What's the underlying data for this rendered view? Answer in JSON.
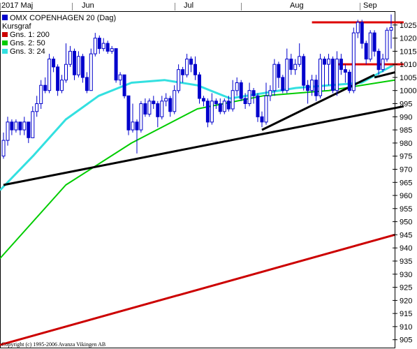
{
  "chart_data": {
    "type": "candlestick",
    "title": "OMX COPENHAGEN 20 (Dag)",
    "subtitle": "Kursgraf",
    "months": [
      "2017 Maj",
      "Jun",
      "Jul",
      "Aug",
      "Sep"
    ],
    "y_ticks": [
      905,
      910,
      915,
      920,
      925,
      930,
      935,
      940,
      945,
      950,
      955,
      960,
      965,
      970,
      975,
      980,
      985,
      990,
      995,
      1000,
      1005,
      1010,
      1015,
      1020,
      1025
    ],
    "ylim": [
      902,
      1030
    ],
    "legend": [
      {
        "label": "OMX COPENHAGEN 20 (Dag)",
        "color": "#0000cc"
      },
      {
        "label": "Kursgraf",
        "color": ""
      },
      {
        "label": "Gns. 1: 200",
        "color": "#cc0000"
      },
      {
        "label": "Gns. 2: 50",
        "color": "#00cc00"
      },
      {
        "label": "Gns. 3: 24",
        "color": "#33e0e0"
      }
    ],
    "candles": [
      {
        "o": 975,
        "c": 981,
        "h": 984,
        "l": 974
      },
      {
        "o": 981,
        "c": 988,
        "h": 990,
        "l": 979
      },
      {
        "o": 988,
        "c": 985,
        "h": 989,
        "l": 983
      },
      {
        "o": 985,
        "c": 988,
        "h": 989,
        "l": 984
      },
      {
        "o": 988,
        "c": 985,
        "h": 988,
        "l": 983
      },
      {
        "o": 985,
        "c": 988,
        "h": 990,
        "l": 983
      },
      {
        "o": 988,
        "c": 982,
        "h": 988,
        "l": 980
      },
      {
        "o": 982,
        "c": 992,
        "h": 994,
        "l": 982
      },
      {
        "o": 992,
        "c": 995,
        "h": 998,
        "l": 990
      },
      {
        "o": 995,
        "c": 1002,
        "h": 1004,
        "l": 993
      },
      {
        "o": 1002,
        "c": 1000,
        "h": 1005,
        "l": 999
      },
      {
        "o": 1000,
        "c": 1012,
        "h": 1014,
        "l": 999
      },
      {
        "o": 1012,
        "c": 1009,
        "h": 1013,
        "l": 1007
      },
      {
        "o": 1009,
        "c": 1000,
        "h": 1010,
        "l": 998
      },
      {
        "o": 1000,
        "c": 1004,
        "h": 1006,
        "l": 999
      },
      {
        "o": 1004,
        "c": 1010,
        "h": 1018,
        "l": 1003
      },
      {
        "o": 1010,
        "c": 1015,
        "h": 1017,
        "l": 1009
      },
      {
        "o": 1015,
        "c": 1006,
        "h": 1016,
        "l": 1004
      },
      {
        "o": 1006,
        "c": 1013,
        "h": 1015,
        "l": 1005
      },
      {
        "o": 1013,
        "c": 1005,
        "h": 1014,
        "l": 1003
      },
      {
        "o": 1005,
        "c": 1000,
        "h": 1007,
        "l": 999
      },
      {
        "o": 1000,
        "c": 1014,
        "h": 1016,
        "l": 1000
      },
      {
        "o": 1014,
        "c": 1020,
        "h": 1022,
        "l": 1013
      },
      {
        "o": 1020,
        "c": 1016,
        "h": 1021,
        "l": 1014
      },
      {
        "o": 1016,
        "c": 1018,
        "h": 1020,
        "l": 1015
      },
      {
        "o": 1018,
        "c": 1015,
        "h": 1019,
        "l": 1014
      },
      {
        "o": 1015,
        "c": 1016,
        "h": 1017,
        "l": 1014
      },
      {
        "o": 1016,
        "c": 1004,
        "h": 1016,
        "l": 1003
      },
      {
        "o": 1004,
        "c": 1006,
        "h": 1007,
        "l": 1002
      },
      {
        "o": 1006,
        "c": 998,
        "h": 1006,
        "l": 997
      },
      {
        "o": 998,
        "c": 985,
        "h": 998,
        "l": 983
      },
      {
        "o": 985,
        "c": 988,
        "h": 995,
        "l": 984
      },
      {
        "o": 988,
        "c": 985,
        "h": 989,
        "l": 976
      },
      {
        "o": 985,
        "c": 995,
        "h": 996,
        "l": 984
      },
      {
        "o": 995,
        "c": 991,
        "h": 997,
        "l": 990
      },
      {
        "o": 991,
        "c": 996,
        "h": 997,
        "l": 990
      },
      {
        "o": 996,
        "c": 995,
        "h": 998,
        "l": 993
      },
      {
        "o": 995,
        "c": 990,
        "h": 996,
        "l": 986
      },
      {
        "o": 990,
        "c": 996,
        "h": 998,
        "l": 989
      },
      {
        "o": 996,
        "c": 997,
        "h": 999,
        "l": 994
      },
      {
        "o": 997,
        "c": 992,
        "h": 998,
        "l": 990
      },
      {
        "o": 992,
        "c": 1000,
        "h": 1002,
        "l": 991
      },
      {
        "o": 1000,
        "c": 1008,
        "h": 1010,
        "l": 999
      },
      {
        "o": 1008,
        "c": 1006,
        "h": 1009,
        "l": 1003
      },
      {
        "o": 1006,
        "c": 1012,
        "h": 1014,
        "l": 1005
      },
      {
        "o": 1012,
        "c": 1010,
        "h": 1013,
        "l": 1007
      },
      {
        "o": 1010,
        "c": 1006,
        "h": 1013,
        "l": 1004
      },
      {
        "o": 1006,
        "c": 997,
        "h": 1007,
        "l": 995
      },
      {
        "o": 997,
        "c": 996,
        "h": 998,
        "l": 994
      },
      {
        "o": 996,
        "c": 988,
        "h": 997,
        "l": 986
      },
      {
        "o": 988,
        "c": 996,
        "h": 999,
        "l": 987
      },
      {
        "o": 996,
        "c": 995,
        "h": 997,
        "l": 993
      },
      {
        "o": 995,
        "c": 992,
        "h": 997,
        "l": 991
      },
      {
        "o": 992,
        "c": 996,
        "h": 997,
        "l": 991
      },
      {
        "o": 996,
        "c": 993,
        "h": 998,
        "l": 992
      },
      {
        "o": 993,
        "c": 1000,
        "h": 1004,
        "l": 992
      },
      {
        "o": 1000,
        "c": 1003,
        "h": 1005,
        "l": 998
      },
      {
        "o": 1003,
        "c": 997,
        "h": 1004,
        "l": 996
      },
      {
        "o": 997,
        "c": 995,
        "h": 999,
        "l": 993
      },
      {
        "o": 995,
        "c": 1000,
        "h": 1003,
        "l": 994
      },
      {
        "o": 1000,
        "c": 998,
        "h": 1001,
        "l": 995
      },
      {
        "o": 998,
        "c": 990,
        "h": 999,
        "l": 988
      },
      {
        "o": 990,
        "c": 988,
        "h": 992,
        "l": 986
      },
      {
        "o": 988,
        "c": 998,
        "h": 1003,
        "l": 987
      },
      {
        "o": 998,
        "c": 1000,
        "h": 1002,
        "l": 996
      },
      {
        "o": 1000,
        "c": 1010,
        "h": 1012,
        "l": 998
      },
      {
        "o": 1010,
        "c": 1005,
        "h": 1011,
        "l": 1001
      },
      {
        "o": 1005,
        "c": 1000,
        "h": 1006,
        "l": 999
      },
      {
        "o": 1000,
        "c": 1012,
        "h": 1016,
        "l": 999
      },
      {
        "o": 1012,
        "c": 1008,
        "h": 1014,
        "l": 1006
      },
      {
        "o": 1008,
        "c": 1010,
        "h": 1012,
        "l": 1006
      },
      {
        "o": 1010,
        "c": 1013,
        "h": 1018,
        "l": 1009
      },
      {
        "o": 1013,
        "c": 1002,
        "h": 1014,
        "l": 1000
      },
      {
        "o": 1002,
        "c": 1000,
        "h": 1004,
        "l": 995
      },
      {
        "o": 1000,
        "c": 1004,
        "h": 1006,
        "l": 998
      },
      {
        "o": 1004,
        "c": 998,
        "h": 1006,
        "l": 996
      },
      {
        "o": 998,
        "c": 1012,
        "h": 1014,
        "l": 997
      },
      {
        "o": 1012,
        "c": 1010,
        "h": 1013,
        "l": 1000
      },
      {
        "o": 1010,
        "c": 1012,
        "h": 1014,
        "l": 1002
      },
      {
        "o": 1012,
        "c": 1000,
        "h": 1013,
        "l": 999
      },
      {
        "o": 1000,
        "c": 1012,
        "h": 1015,
        "l": 998
      },
      {
        "o": 1012,
        "c": 1008,
        "h": 1014,
        "l": 1006
      },
      {
        "o": 1008,
        "c": 1007,
        "h": 1010,
        "l": 1003
      },
      {
        "o": 1007,
        "c": 1000,
        "h": 1008,
        "l": 999
      },
      {
        "o": 1000,
        "c": 1022,
        "h": 1024,
        "l": 999
      },
      {
        "o": 1022,
        "c": 1026,
        "h": 1027,
        "l": 1020
      },
      {
        "o": 1026,
        "c": 1018,
        "h": 1027,
        "l": 1016
      },
      {
        "o": 1018,
        "c": 1012,
        "h": 1019,
        "l": 1010
      },
      {
        "o": 1012,
        "c": 1022,
        "h": 1023,
        "l": 1011
      },
      {
        "o": 1022,
        "c": 1015,
        "h": 1023,
        "l": 1013
      },
      {
        "o": 1015,
        "c": 1008,
        "h": 1016,
        "l": 1006
      },
      {
        "o": 1008,
        "c": 1012,
        "h": 1014,
        "l": 1007
      },
      {
        "o": 1012,
        "c": 1023,
        "h": 1024,
        "l": 1011
      },
      {
        "o": 1023,
        "c": 1024,
        "h": 1029,
        "l": 1016
      }
    ],
    "ma200": [
      903,
      945
    ],
    "ma50": [
      936,
      964,
      980,
      993,
      998,
      1000,
      1004
    ],
    "ma24": [
      962,
      975,
      989,
      998,
      1003,
      1004,
      1002,
      997,
      999,
      1001,
      1002,
      1003,
      1010
    ],
    "trend_lines": [
      {
        "from": [
          0,
          964
        ],
        "to": [
          96,
          994
        ]
      },
      {
        "from": [
          62,
          985
        ],
        "to": [
          89,
          1006
        ]
      },
      {
        "from": [
          94,
          1007
        ],
        "to": [
          89,
          1005
        ]
      }
    ],
    "resistance": {
      "level": 1026,
      "from": 74,
      "to": 96
    },
    "support": {
      "level": 1010,
      "from": 80,
      "to": 96
    },
    "copyright": "Copyright (c) 1995-2006 Avanza Vikingen AB"
  }
}
